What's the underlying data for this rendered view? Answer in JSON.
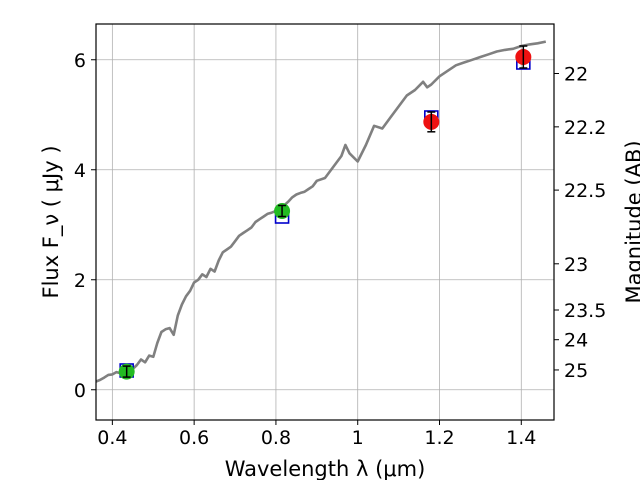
{
  "chart_data": {
    "type": "scatter",
    "xlabel": "Wavelength  λ (μm)",
    "ylabel": "Flux  F_ν  ( μJy )",
    "y2label": "Magnitude (AB)",
    "xlim": [
      0.36,
      1.48
    ],
    "ylim": [
      -0.55,
      6.65
    ],
    "grid": true,
    "x_ticks": [
      0.4,
      0.6,
      0.8,
      1.0,
      1.2,
      1.4
    ],
    "x_tick_labels": [
      "0.4",
      "0.6",
      "0.8",
      "1",
      "1.2",
      "1.4"
    ],
    "y_ticks": [
      0,
      2,
      4,
      6
    ],
    "y_tick_labels": [
      "0",
      "2",
      "4",
      "6"
    ],
    "y2_ticks": [
      {
        "label": "22",
        "flux": 5.75
      },
      {
        "label": "22.2",
        "flux": 4.78
      },
      {
        "label": "22.5",
        "flux": 3.63
      },
      {
        "label": "23",
        "flux": 2.29
      },
      {
        "label": "23.5",
        "flux": 1.45
      },
      {
        "label": "24",
        "flux": 0.91
      },
      {
        "label": "25",
        "flux": 0.36
      }
    ],
    "model_spectrum": {
      "color": "#808080",
      "x": [
        0.36,
        0.37,
        0.38,
        0.39,
        0.4,
        0.41,
        0.42,
        0.43,
        0.44,
        0.45,
        0.46,
        0.47,
        0.48,
        0.49,
        0.5,
        0.51,
        0.52,
        0.53,
        0.54,
        0.55,
        0.56,
        0.57,
        0.58,
        0.59,
        0.6,
        0.61,
        0.62,
        0.63,
        0.64,
        0.65,
        0.66,
        0.67,
        0.68,
        0.69,
        0.7,
        0.71,
        0.72,
        0.73,
        0.74,
        0.75,
        0.76,
        0.77,
        0.78,
        0.79,
        0.8,
        0.81,
        0.82,
        0.83,
        0.84,
        0.85,
        0.86,
        0.87,
        0.88,
        0.89,
        0.9,
        0.92,
        0.94,
        0.96,
        0.97,
        0.98,
        1.0,
        1.02,
        1.04,
        1.06,
        1.08,
        1.1,
        1.12,
        1.14,
        1.16,
        1.17,
        1.18,
        1.2,
        1.22,
        1.24,
        1.26,
        1.28,
        1.3,
        1.32,
        1.34,
        1.36,
        1.38,
        1.4,
        1.42,
        1.44,
        1.46
      ],
      "y": [
        0.15,
        0.18,
        0.22,
        0.27,
        0.28,
        0.32,
        0.3,
        0.35,
        0.4,
        0.38,
        0.45,
        0.55,
        0.5,
        0.62,
        0.6,
        0.85,
        1.05,
        1.1,
        1.12,
        1.0,
        1.35,
        1.55,
        1.7,
        1.8,
        1.95,
        2.0,
        2.1,
        2.05,
        2.2,
        2.15,
        2.35,
        2.5,
        2.55,
        2.6,
        2.7,
        2.8,
        2.85,
        2.9,
        2.95,
        3.05,
        3.1,
        3.15,
        3.2,
        3.22,
        3.25,
        3.3,
        3.35,
        3.42,
        3.5,
        3.55,
        3.58,
        3.6,
        3.65,
        3.7,
        3.8,
        3.85,
        4.05,
        4.25,
        4.45,
        4.3,
        4.15,
        4.45,
        4.8,
        4.75,
        4.95,
        5.15,
        5.35,
        5.45,
        5.6,
        5.5,
        5.55,
        5.7,
        5.8,
        5.9,
        5.95,
        6.0,
        6.05,
        6.1,
        6.15,
        6.18,
        6.2,
        6.25,
        6.28,
        6.3,
        6.33
      ]
    },
    "model_points": {
      "color": "#0000cc",
      "x": [
        0.435,
        0.815,
        1.18,
        1.405
      ],
      "y": [
        0.35,
        3.15,
        4.95,
        5.95
      ]
    },
    "observed_points": [
      {
        "x": 0.435,
        "y": 0.33,
        "err": 0.1,
        "color": "#22bb22"
      },
      {
        "x": 0.815,
        "y": 3.25,
        "err": 0.1,
        "color": "#22bb22"
      },
      {
        "x": 1.18,
        "y": 4.87,
        "err": 0.18,
        "color": "#ee1111"
      },
      {
        "x": 1.405,
        "y": 6.05,
        "err": 0.2,
        "color": "#ee1111"
      }
    ]
  }
}
